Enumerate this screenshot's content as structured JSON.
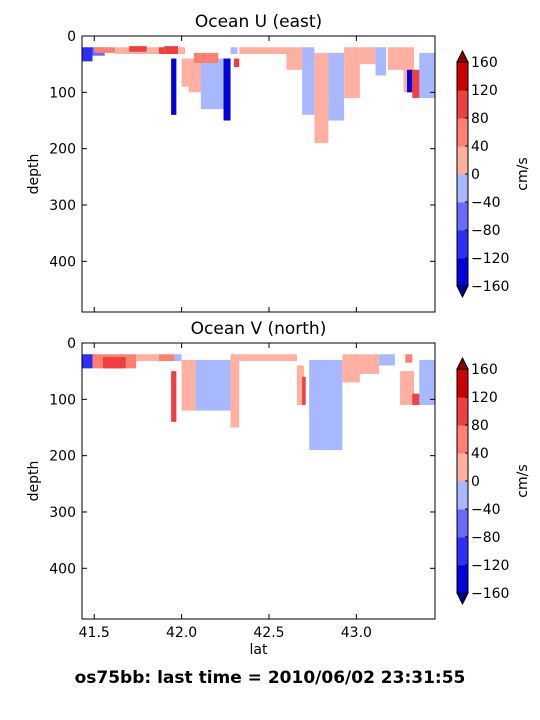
{
  "footer": "os75bb: last time = 2010/06/02 23:31:55",
  "colors": {
    "levels": [
      "#0000dd",
      "#2e2ef5",
      "#6a6aff",
      "#a8b8ff",
      "#ffb0a0",
      "#ff8070",
      "#ee4040",
      "#cc0000"
    ],
    "under": "#000090",
    "over": "#880000",
    "frame": "#000000"
  },
  "chart_data": [
    {
      "type": "heatmap",
      "title": "Ocean U (east)",
      "xlabel": "",
      "ylabel": "depth",
      "xticks": [
        41.5,
        42.0,
        42.5,
        43.0
      ],
      "show_xticklabels": false,
      "xlim": [
        41.43,
        43.45
      ],
      "yticks": [
        0,
        100,
        200,
        300,
        400
      ],
      "ylim": [
        490,
        0
      ],
      "colorbar": {
        "label": "cm/s",
        "ticks": [
          "160",
          "120",
          "80",
          "40",
          "0",
          "−40",
          "−80",
          "−120",
          "−160"
        ],
        "levels": [
          -160,
          -120,
          -80,
          -40,
          0,
          40,
          80,
          120,
          160
        ]
      },
      "regions": [
        {
          "lat": [
            41.43,
            41.49
          ],
          "depth": [
            20,
            45
          ],
          "value": -100
        },
        {
          "lat": [
            41.49,
            41.56
          ],
          "depth": [
            20,
            35
          ],
          "value": -50
        },
        {
          "lat": [
            41.5,
            41.62
          ],
          "depth": [
            20,
            30
          ],
          "value": 60
        },
        {
          "lat": [
            41.62,
            41.87
          ],
          "depth": [
            20,
            32
          ],
          "value": 20
        },
        {
          "lat": [
            41.87,
            41.9
          ],
          "depth": [
            20,
            32
          ],
          "value": 90
        },
        {
          "lat": [
            41.7,
            41.8
          ],
          "depth": [
            18,
            28
          ],
          "value": 90
        },
        {
          "lat": [
            41.9,
            41.98
          ],
          "depth": [
            18,
            32
          ],
          "value": 90
        },
        {
          "lat": [
            41.98,
            42.02
          ],
          "depth": [
            20,
            32
          ],
          "value": 20
        },
        {
          "lat": [
            41.94,
            41.97
          ],
          "depth": [
            40,
            140
          ],
          "value": -130
        },
        {
          "lat": [
            42.0,
            42.04
          ],
          "depth": [
            40,
            90
          ],
          "value": 30
        },
        {
          "lat": [
            42.04,
            42.12
          ],
          "depth": [
            40,
            100
          ],
          "value": 30
        },
        {
          "lat": [
            42.11,
            42.25
          ],
          "depth": [
            40,
            130
          ],
          "value": -30
        },
        {
          "lat": [
            42.07,
            42.21
          ],
          "depth": [
            30,
            48
          ],
          "value": 60
        },
        {
          "lat": [
            42.24,
            42.28
          ],
          "depth": [
            40,
            150
          ],
          "value": -150
        },
        {
          "lat": [
            42.28,
            42.32
          ],
          "depth": [
            20,
            32
          ],
          "value": -30
        },
        {
          "lat": [
            42.3,
            42.33
          ],
          "depth": [
            40,
            55
          ],
          "value": 100
        },
        {
          "lat": [
            42.33,
            42.6
          ],
          "depth": [
            20,
            32
          ],
          "value": 20
        },
        {
          "lat": [
            42.6,
            42.7
          ],
          "depth": [
            20,
            60
          ],
          "value": 20
        },
        {
          "lat": [
            42.69,
            42.76
          ],
          "depth": [
            20,
            140
          ],
          "value": -30
        },
        {
          "lat": [
            42.76,
            42.84
          ],
          "depth": [
            30,
            190
          ],
          "value": 20
        },
        {
          "lat": [
            42.84,
            42.93
          ],
          "depth": [
            30,
            150
          ],
          "value": -30
        },
        {
          "lat": [
            42.93,
            43.02
          ],
          "depth": [
            20,
            110
          ],
          "value": 20
        },
        {
          "lat": [
            43.02,
            43.12
          ],
          "depth": [
            20,
            50
          ],
          "value": 20
        },
        {
          "lat": [
            43.11,
            43.17
          ],
          "depth": [
            20,
            70
          ],
          "value": -30
        },
        {
          "lat": [
            43.18,
            43.27
          ],
          "depth": [
            20,
            60
          ],
          "value": 20
        },
        {
          "lat": [
            43.27,
            43.33
          ],
          "depth": [
            20,
            100
          ],
          "value": 20
        },
        {
          "lat": [
            43.29,
            43.32
          ],
          "depth": [
            60,
            100
          ],
          "value": -130
        },
        {
          "lat": [
            43.32,
            43.37
          ],
          "depth": [
            60,
            110
          ],
          "value": 100
        },
        {
          "lat": [
            43.36,
            43.45
          ],
          "depth": [
            30,
            110
          ],
          "value": -30
        }
      ]
    },
    {
      "type": "heatmap",
      "title": "Ocean V (north)",
      "xlabel": "lat",
      "ylabel": "depth",
      "xticks": [
        41.5,
        42.0,
        42.5,
        43.0
      ],
      "show_xticklabels": true,
      "xlim": [
        41.43,
        43.45
      ],
      "yticks": [
        0,
        100,
        200,
        300,
        400
      ],
      "ylim": [
        490,
        0
      ],
      "colorbar": {
        "label": "cm/s",
        "ticks": [
          "160",
          "120",
          "80",
          "40",
          "0",
          "−40",
          "−80",
          "−120",
          "−160"
        ],
        "levels": [
          -160,
          -120,
          -80,
          -40,
          0,
          40,
          80,
          120,
          160
        ]
      },
      "regions": [
        {
          "lat": [
            41.43,
            41.49
          ],
          "depth": [
            20,
            45
          ],
          "value": -100
        },
        {
          "lat": [
            41.49,
            41.74
          ],
          "depth": [
            20,
            45
          ],
          "value": 60
        },
        {
          "lat": [
            41.55,
            41.68
          ],
          "depth": [
            25,
            45
          ],
          "value": 100
        },
        {
          "lat": [
            41.74,
            41.87
          ],
          "depth": [
            20,
            32
          ],
          "value": 20
        },
        {
          "lat": [
            41.87,
            41.96
          ],
          "depth": [
            20,
            32
          ],
          "value": 60
        },
        {
          "lat": [
            41.96,
            42.0
          ],
          "depth": [
            20,
            32
          ],
          "value": -30
        },
        {
          "lat": [
            41.94,
            41.97
          ],
          "depth": [
            50,
            140
          ],
          "value": 100
        },
        {
          "lat": [
            42.0,
            42.08
          ],
          "depth": [
            30,
            120
          ],
          "value": 20
        },
        {
          "lat": [
            42.08,
            42.28
          ],
          "depth": [
            30,
            120
          ],
          "value": -30
        },
        {
          "lat": [
            42.28,
            42.33
          ],
          "depth": [
            20,
            150
          ],
          "value": 20
        },
        {
          "lat": [
            42.33,
            42.66
          ],
          "depth": [
            20,
            32
          ],
          "value": 20
        },
        {
          "lat": [
            42.66,
            42.7
          ],
          "depth": [
            40,
            110
          ],
          "value": 20
        },
        {
          "lat": [
            42.69,
            42.71
          ],
          "depth": [
            60,
            110
          ],
          "value": 100
        },
        {
          "lat": [
            42.73,
            42.92
          ],
          "depth": [
            30,
            190
          ],
          "value": -30
        },
        {
          "lat": [
            42.92,
            43.02
          ],
          "depth": [
            20,
            70
          ],
          "value": 20
        },
        {
          "lat": [
            43.02,
            43.13
          ],
          "depth": [
            20,
            55
          ],
          "value": 20
        },
        {
          "lat": [
            43.13,
            43.22
          ],
          "depth": [
            20,
            40
          ],
          "value": -30
        },
        {
          "lat": [
            43.25,
            43.33
          ],
          "depth": [
            50,
            110
          ],
          "value": 20
        },
        {
          "lat": [
            43.28,
            43.32
          ],
          "depth": [
            20,
            35
          ],
          "value": 60
        },
        {
          "lat": [
            43.32,
            43.37
          ],
          "depth": [
            90,
            110
          ],
          "value": 100
        },
        {
          "lat": [
            43.36,
            43.45
          ],
          "depth": [
            30,
            110
          ],
          "value": -30
        }
      ]
    }
  ]
}
